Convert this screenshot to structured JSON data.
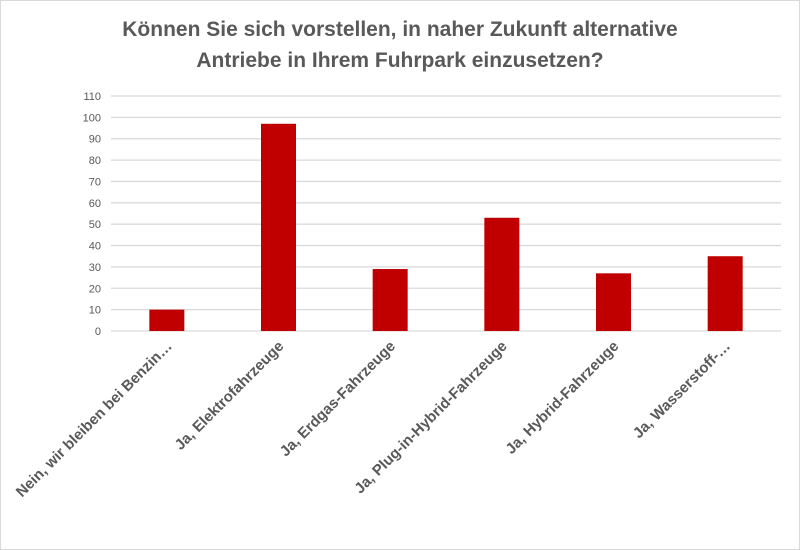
{
  "chart_data": {
    "type": "bar",
    "title": [
      "Können Sie sich vorstellen, in naher Zukunft alternative",
      "Antriebe in Ihrem Fuhrpark einzusetzen?"
    ],
    "categories": [
      "Nein, wir bleiben bei Benzin…",
      "Ja, Elektrofahrzeuge",
      "Ja, Erdgas-Fahrzeuge",
      "Ja, Plug-in-Hybrid-Fahrzeuge",
      "Ja, Hybrid-Fahrzeuge",
      "Ja, Wasserstoff-…"
    ],
    "values": [
      10,
      97,
      29,
      53,
      27,
      35
    ],
    "xlabel": "",
    "ylabel": "",
    "ylim": [
      0,
      110
    ],
    "yticks": [
      0,
      10,
      20,
      30,
      40,
      50,
      60,
      70,
      80,
      90,
      100,
      110
    ],
    "grid": true,
    "legend": "none",
    "colors": {
      "bar": "#c00000",
      "grid": "#d9d9d9",
      "text": "#595959"
    }
  }
}
